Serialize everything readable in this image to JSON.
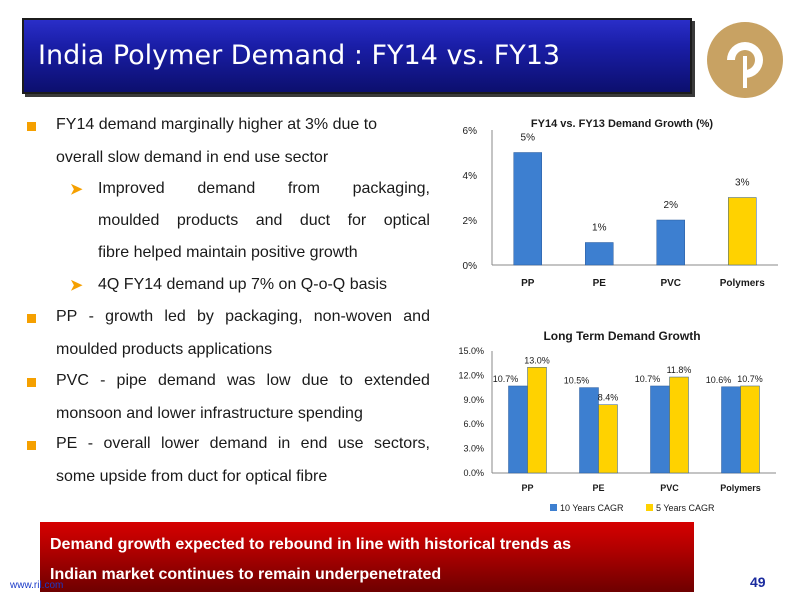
{
  "slide": {
    "title": "India Polymer Demand : FY14 vs. FY13",
    "website": "www.ril.com",
    "page_number": "49"
  },
  "bullets": {
    "b1_line1": "FY14 demand marginally higher at 3% due to",
    "b1_line2": "overall slow demand in end use sector",
    "s1_line1_words": [
      "Improved",
      "demand",
      "from",
      "packaging,"
    ],
    "s1_line2_words": [
      "moulded",
      "products",
      "and",
      "duct",
      "for",
      "optical"
    ],
    "s1_line3": "fibre helped maintain positive growth",
    "s2_line1": "4Q FY14 demand up 7% on Q-o-Q basis",
    "b2_line1_words": [
      "PP",
      "-",
      "growth",
      "led",
      "by",
      "packaging,",
      "non-woven",
      "and"
    ],
    "b2_line2": "moulded products applications",
    "b3_line1_words": [
      "PVC",
      "-",
      "pipe",
      "demand",
      "was",
      "low",
      "due",
      "to",
      "extended"
    ],
    "b3_line2": "monsoon and lower infrastructure spending",
    "b4_line1_words": [
      "PE",
      "-",
      "overall",
      "lower",
      "demand",
      "in",
      "end",
      "use",
      "sectors,"
    ],
    "b4_line2": "some upside from duct for optical fibre"
  },
  "banner": {
    "line1": "Demand growth expected to rebound in line with historical trends as",
    "line2": "Indian market continues to remain underpenetrated"
  },
  "colors": {
    "bar_blue": "#3d7fd0",
    "bar_yellow": "#ffd200"
  },
  "chart_data": [
    {
      "type": "bar",
      "title": "FY14 vs. FY13 Demand Growth (%)",
      "categories": [
        "PP",
        "PE",
        "PVC",
        "Polymers"
      ],
      "values": [
        5,
        1,
        2,
        3
      ],
      "value_labels": [
        "5%",
        "1%",
        "2%",
        "3%"
      ],
      "bar_colors": [
        "#3d7fd0",
        "#3d7fd0",
        "#3d7fd0",
        "#ffd200"
      ],
      "ylim": [
        0,
        6
      ],
      "yticks": [
        0,
        2,
        4,
        6
      ],
      "ytick_labels": [
        "0%",
        "2%",
        "4%",
        "6%"
      ],
      "grid": false
    },
    {
      "type": "bar",
      "title": "Long Term Demand Growth",
      "categories": [
        "PP",
        "PE",
        "PVC",
        "Polymers"
      ],
      "series": [
        {
          "name": "10 Years CAGR",
          "values": [
            10.7,
            10.5,
            10.7,
            10.6
          ],
          "labels": [
            "10.7%",
            "10.5%",
            "10.7%",
            "10.6%"
          ],
          "color": "#3d7fd0"
        },
        {
          "name": "5 Years CAGR",
          "values": [
            13.0,
            8.4,
            11.8,
            10.7
          ],
          "labels": [
            "13.0%",
            "8.4%",
            "11.8%",
            "10.7%"
          ],
          "color": "#ffd200"
        }
      ],
      "ylim": [
        0,
        15
      ],
      "yticks": [
        0,
        3,
        6,
        9,
        12,
        15
      ],
      "ytick_labels": [
        "0.0%",
        "3.0%",
        "6.0%",
        "9.0%",
        "12.0%",
        "15.0%"
      ],
      "legend": "bottom",
      "grid": false
    }
  ]
}
